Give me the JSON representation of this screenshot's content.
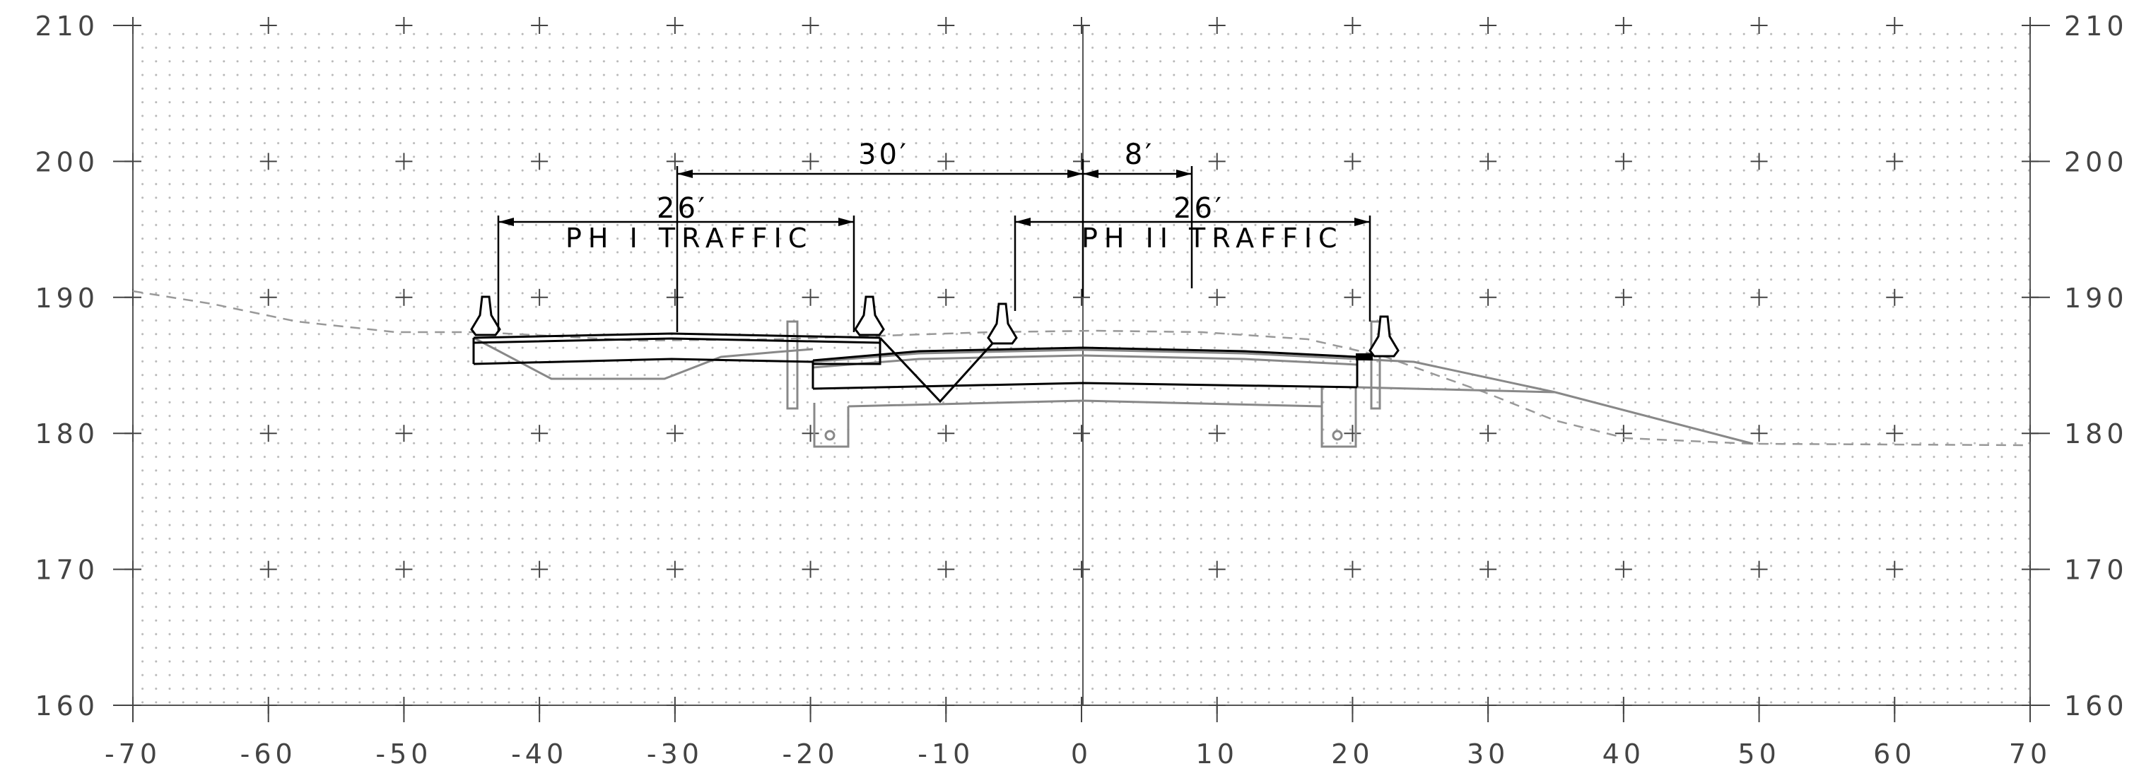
{
  "x_axis": {
    "min": -70,
    "max": 70,
    "step": 10,
    "labels": [
      "-70",
      "-60",
      "-50",
      "-40",
      "-30",
      "-20",
      "-10",
      "0",
      "10",
      "20",
      "30",
      "40",
      "50",
      "60",
      "70"
    ]
  },
  "y_axis": {
    "min": 160,
    "max": 210,
    "step": 10,
    "labels": [
      "160",
      "170",
      "180",
      "190",
      "200",
      "210"
    ]
  },
  "dimensions": {
    "d30": "30′",
    "d8": "8′",
    "d26_left": "26′",
    "d26_right": "26′"
  },
  "notes": {
    "phase1": "PH I TRAFFIC",
    "phase2": "PH II TRAFFIC"
  },
  "colors": {
    "grid_dots": "#b8b8b8",
    "axis": "#555555",
    "existing_ground": "#999999",
    "proposed": "#888888",
    "construction": "#000000"
  },
  "icons": {
    "barrier": "jersey-barrier-icon"
  }
}
